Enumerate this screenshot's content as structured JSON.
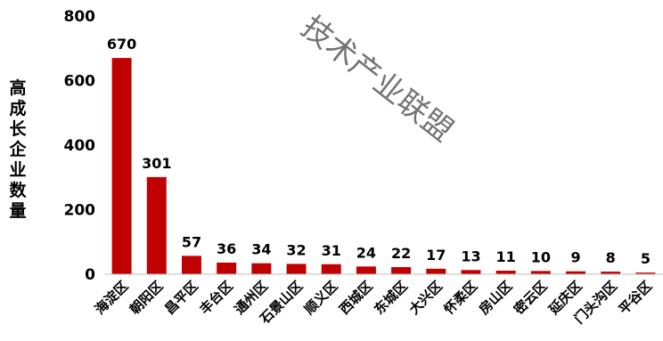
{
  "chart_data": {
    "type": "bar",
    "title": "",
    "xlabel": "",
    "ylabel": "高成长企业数量",
    "ylim": [
      0,
      800
    ],
    "yticks": [
      0,
      200,
      400,
      600,
      800
    ],
    "grid": false,
    "bar_color": "#c00000",
    "categories": [
      "海淀区",
      "朝阳区",
      "昌平区",
      "丰台区",
      "通州区",
      "石景山区",
      "顺义区",
      "西城区",
      "东城区",
      "大兴区",
      "怀柔区",
      "房山区",
      "密云区",
      "延庆区",
      "门头沟区",
      "平谷区"
    ],
    "values": [
      670,
      301,
      57,
      36,
      34,
      32,
      31,
      24,
      22,
      17,
      13,
      11,
      10,
      9,
      8,
      5
    ]
  },
  "watermark": "技术产业联盟"
}
